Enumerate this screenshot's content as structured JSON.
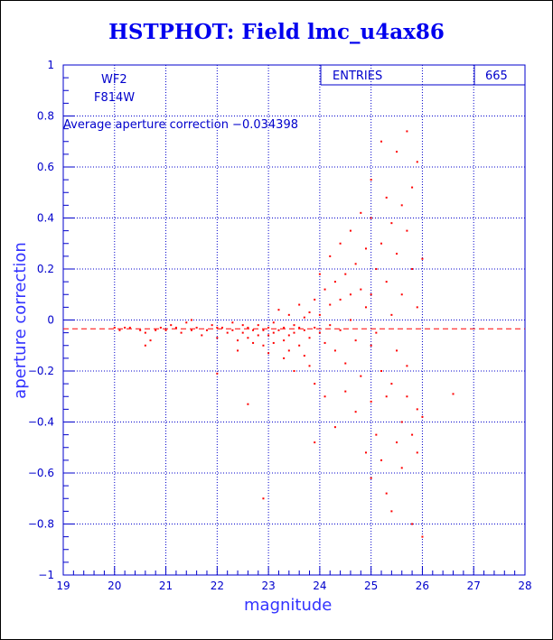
{
  "chart_data": {
    "type": "scatter",
    "title": "HSTPHOT: Field lmc_u4ax86",
    "xlabel": "magnitude",
    "ylabel": "aperture correction",
    "xlim": [
      19,
      28
    ],
    "ylim": [
      -1,
      1
    ],
    "x_ticks": [
      "19",
      "20",
      "21",
      "22",
      "23",
      "24",
      "25",
      "26",
      "27",
      "28"
    ],
    "y_ticks": [
      "−1",
      "−0.8",
      "−0.6",
      "−0.4",
      "−0.2",
      "0",
      "0.2",
      "0.4",
      "0.6",
      "0.8",
      "1"
    ],
    "grid": true,
    "reference_line": {
      "y": -0.034398,
      "style": "dashed",
      "color": "#ff0000"
    },
    "annotations": {
      "chip": "WF2",
      "filter": "F814W",
      "average_text": "Average aperture correction −0.034398"
    },
    "stats_box": {
      "label": "ENTRIES",
      "value": "665"
    },
    "point_color": "#ff0000",
    "series": [
      {
        "points": [
          [
            20.0,
            -0.03
          ],
          [
            20.1,
            -0.04
          ],
          [
            20.2,
            -0.03
          ],
          [
            20.3,
            -0.03
          ],
          [
            20.5,
            -0.04
          ],
          [
            20.6,
            -0.05
          ],
          [
            20.6,
            -0.1
          ],
          [
            20.7,
            -0.08
          ],
          [
            20.8,
            -0.04
          ],
          [
            20.9,
            -0.03
          ],
          [
            21.0,
            -0.04
          ],
          [
            21.1,
            -0.02
          ],
          [
            21.2,
            -0.03
          ],
          [
            21.3,
            -0.05
          ],
          [
            21.4,
            -0.01
          ],
          [
            21.5,
            0.0
          ],
          [
            21.5,
            -0.04
          ],
          [
            21.6,
            -0.03
          ],
          [
            21.7,
            -0.06
          ],
          [
            21.8,
            -0.04
          ],
          [
            21.9,
            -0.02
          ],
          [
            22.0,
            -0.03
          ],
          [
            22.0,
            -0.07
          ],
          [
            22.0,
            -0.21
          ],
          [
            22.1,
            -0.03
          ],
          [
            22.2,
            -0.05
          ],
          [
            22.3,
            -0.01
          ],
          [
            22.3,
            -0.04
          ],
          [
            22.4,
            -0.08
          ],
          [
            22.4,
            -0.12
          ],
          [
            22.5,
            -0.02
          ],
          [
            22.5,
            -0.05
          ],
          [
            22.6,
            -0.03
          ],
          [
            22.6,
            -0.07
          ],
          [
            22.6,
            -0.33
          ],
          [
            22.7,
            -0.04
          ],
          [
            22.7,
            -0.09
          ],
          [
            22.8,
            -0.02
          ],
          [
            22.8,
            -0.06
          ],
          [
            22.9,
            -0.04
          ],
          [
            22.9,
            -0.1
          ],
          [
            22.9,
            -0.7
          ],
          [
            23.0,
            -0.03
          ],
          [
            23.0,
            -0.06
          ],
          [
            23.0,
            -0.13
          ],
          [
            23.1,
            -0.01
          ],
          [
            23.1,
            -0.05
          ],
          [
            23.1,
            -0.09
          ],
          [
            23.2,
            -0.04
          ],
          [
            23.2,
            0.04
          ],
          [
            23.3,
            -0.03
          ],
          [
            23.3,
            -0.08
          ],
          [
            23.3,
            -0.15
          ],
          [
            23.4,
            0.02
          ],
          [
            23.4,
            -0.06
          ],
          [
            23.4,
            -0.12
          ],
          [
            23.5,
            -0.02
          ],
          [
            23.5,
            -0.05
          ],
          [
            23.5,
            -0.2
          ],
          [
            23.6,
            0.06
          ],
          [
            23.6,
            -0.03
          ],
          [
            23.6,
            -0.1
          ],
          [
            23.7,
            -0.04
          ],
          [
            23.7,
            0.01
          ],
          [
            23.7,
            -0.14
          ],
          [
            23.8,
            0.03
          ],
          [
            23.8,
            -0.07
          ],
          [
            23.8,
            -0.18
          ],
          [
            23.9,
            0.08
          ],
          [
            23.9,
            -0.03
          ],
          [
            23.9,
            -0.25
          ],
          [
            23.9,
            -0.48
          ],
          [
            24.0,
            0.02
          ],
          [
            24.0,
            -0.05
          ],
          [
            24.0,
            0.18
          ],
          [
            24.1,
            0.12
          ],
          [
            24.1,
            -0.09
          ],
          [
            24.1,
            -0.3
          ],
          [
            24.2,
            0.06
          ],
          [
            24.2,
            -0.02
          ],
          [
            24.2,
            0.25
          ],
          [
            24.3,
            0.15
          ],
          [
            24.3,
            -0.12
          ],
          [
            24.3,
            -0.42
          ],
          [
            24.4,
            0.08
          ],
          [
            24.4,
            -0.04
          ],
          [
            24.4,
            0.3
          ],
          [
            24.5,
            0.18
          ],
          [
            24.5,
            -0.17
          ],
          [
            24.5,
            -0.28
          ],
          [
            24.6,
            0.1
          ],
          [
            24.6,
            0.0
          ],
          [
            24.6,
            0.35
          ],
          [
            24.7,
            0.22
          ],
          [
            24.7,
            -0.08
          ],
          [
            24.7,
            -0.36
          ],
          [
            24.8,
            0.12
          ],
          [
            24.8,
            0.42
          ],
          [
            24.8,
            -0.22
          ],
          [
            24.9,
            0.05
          ],
          [
            24.9,
            0.28
          ],
          [
            24.9,
            -0.52
          ],
          [
            25.0,
            0.55
          ],
          [
            25.0,
            0.4
          ],
          [
            25.0,
            0.1
          ],
          [
            25.0,
            -0.1
          ],
          [
            25.0,
            -0.32
          ],
          [
            25.0,
            -0.62
          ],
          [
            25.1,
            0.2
          ],
          [
            25.1,
            -0.05
          ],
          [
            25.1,
            -0.45
          ],
          [
            25.2,
            0.7
          ],
          [
            25.2,
            0.3
          ],
          [
            25.2,
            -0.2
          ],
          [
            25.2,
            -0.55
          ],
          [
            25.3,
            0.48
          ],
          [
            25.3,
            0.15
          ],
          [
            25.3,
            -0.3
          ],
          [
            25.3,
            -0.68
          ],
          [
            25.4,
            0.38
          ],
          [
            25.4,
            0.02
          ],
          [
            25.4,
            -0.25
          ],
          [
            25.4,
            -0.75
          ],
          [
            25.5,
            0.66
          ],
          [
            25.5,
            0.26
          ],
          [
            25.5,
            -0.12
          ],
          [
            25.5,
            -0.48
          ],
          [
            25.6,
            0.45
          ],
          [
            25.6,
            0.1
          ],
          [
            25.6,
            -0.4
          ],
          [
            25.6,
            -0.58
          ],
          [
            25.7,
            0.74
          ],
          [
            25.7,
            0.35
          ],
          [
            25.7,
            -0.18
          ],
          [
            25.7,
            -0.3
          ],
          [
            25.8,
            0.52
          ],
          [
            25.8,
            0.2
          ],
          [
            25.8,
            -0.45
          ],
          [
            25.8,
            -0.8
          ],
          [
            25.9,
            0.62
          ],
          [
            25.9,
            0.05
          ],
          [
            25.9,
            -0.35
          ],
          [
            25.9,
            -0.52
          ],
          [
            26.0,
            0.24
          ],
          [
            26.0,
            -0.38
          ],
          [
            26.0,
            -0.85
          ],
          [
            26.6,
            -0.29
          ]
        ]
      }
    ]
  }
}
